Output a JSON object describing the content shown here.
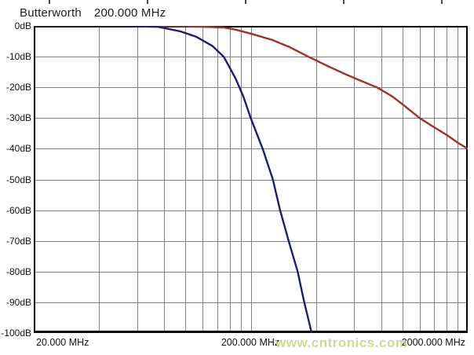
{
  "title": {
    "filter_type": "Butterworth",
    "frequency": "200.000 MHz"
  },
  "watermark": "www.cntronics.com",
  "colors": {
    "background": "#ffffff",
    "grid": "#818181",
    "border": "#000000",
    "title_text": "#1c1c1c",
    "label_text": "#111111",
    "watermark": "#c9d787",
    "series_steep": "#1b1b78",
    "series_shallow": "#a03028"
  },
  "chart_data": {
    "type": "line",
    "title": "Butterworth 200.000 MHz",
    "x_scale": "log",
    "x_unit": "MHz",
    "x_range": [
      20,
      2000
    ],
    "y_unit": "dB",
    "y_range": [
      -100,
      0
    ],
    "grid": true,
    "legend": false,
    "x_tick_labels": [
      "20.000 MHz",
      "200.000 MHz",
      "2000.000 MHz"
    ],
    "y_tick_labels": [
      "0dB",
      "-10dB",
      "-20dB",
      "-30dB",
      "-40dB",
      "-50dB",
      "-60dB",
      "-70dB",
      "-80dB",
      "-90dB",
      "-100dB"
    ],
    "x_gridlines_mhz": [
      40,
      60,
      80,
      100,
      120,
      140,
      160,
      180,
      200,
      400,
      600,
      800,
      1000,
      1200,
      1400,
      1600,
      1800
    ],
    "y_gridlines_db": [
      -10,
      -20,
      -30,
      -40,
      -50,
      -60,
      -70,
      -80,
      -90
    ],
    "series": [
      {
        "name": "high-order-response",
        "color": "#a03028",
        "comment": "shallow red curve, ~-40dB at 2000 MHz",
        "points": [
          [
            20,
            0
          ],
          [
            60,
            0
          ],
          [
            100,
            -0.1
          ],
          [
            150,
            -0.5
          ],
          [
            170,
            -1.2
          ],
          [
            200,
            -2.5
          ],
          [
            250,
            -4.5
          ],
          [
            300,
            -6.8
          ],
          [
            368,
            -10
          ],
          [
            450,
            -13
          ],
          [
            550,
            -15.8
          ],
          [
            650,
            -18
          ],
          [
            762,
            -20
          ],
          [
            900,
            -23
          ],
          [
            1000,
            -25.5
          ],
          [
            1200,
            -30
          ],
          [
            1400,
            -33
          ],
          [
            1600,
            -35.5
          ],
          [
            1800,
            -38
          ],
          [
            2000,
            -40
          ]
        ]
      },
      {
        "name": "steep-response",
        "color": "#1b1b78",
        "comment": "steep navy curve, -30dB at 200 MHz, floor ~380 MHz",
        "points": [
          [
            20,
            0
          ],
          [
            50,
            0
          ],
          [
            75,
            -0.3
          ],
          [
            95,
            -1.8
          ],
          [
            112,
            -3.5
          ],
          [
            133,
            -6.5
          ],
          [
            150,
            -10
          ],
          [
            170,
            -17
          ],
          [
            185,
            -23
          ],
          [
            200,
            -30
          ],
          [
            227,
            -40
          ],
          [
            253,
            -50
          ],
          [
            273,
            -60
          ],
          [
            299,
            -70
          ],
          [
            329,
            -80
          ],
          [
            353,
            -90
          ],
          [
            382,
            -100
          ]
        ]
      }
    ]
  },
  "top_ruler": {
    "ticks_x": [
      62,
      187,
      312,
      437,
      562
    ]
  }
}
